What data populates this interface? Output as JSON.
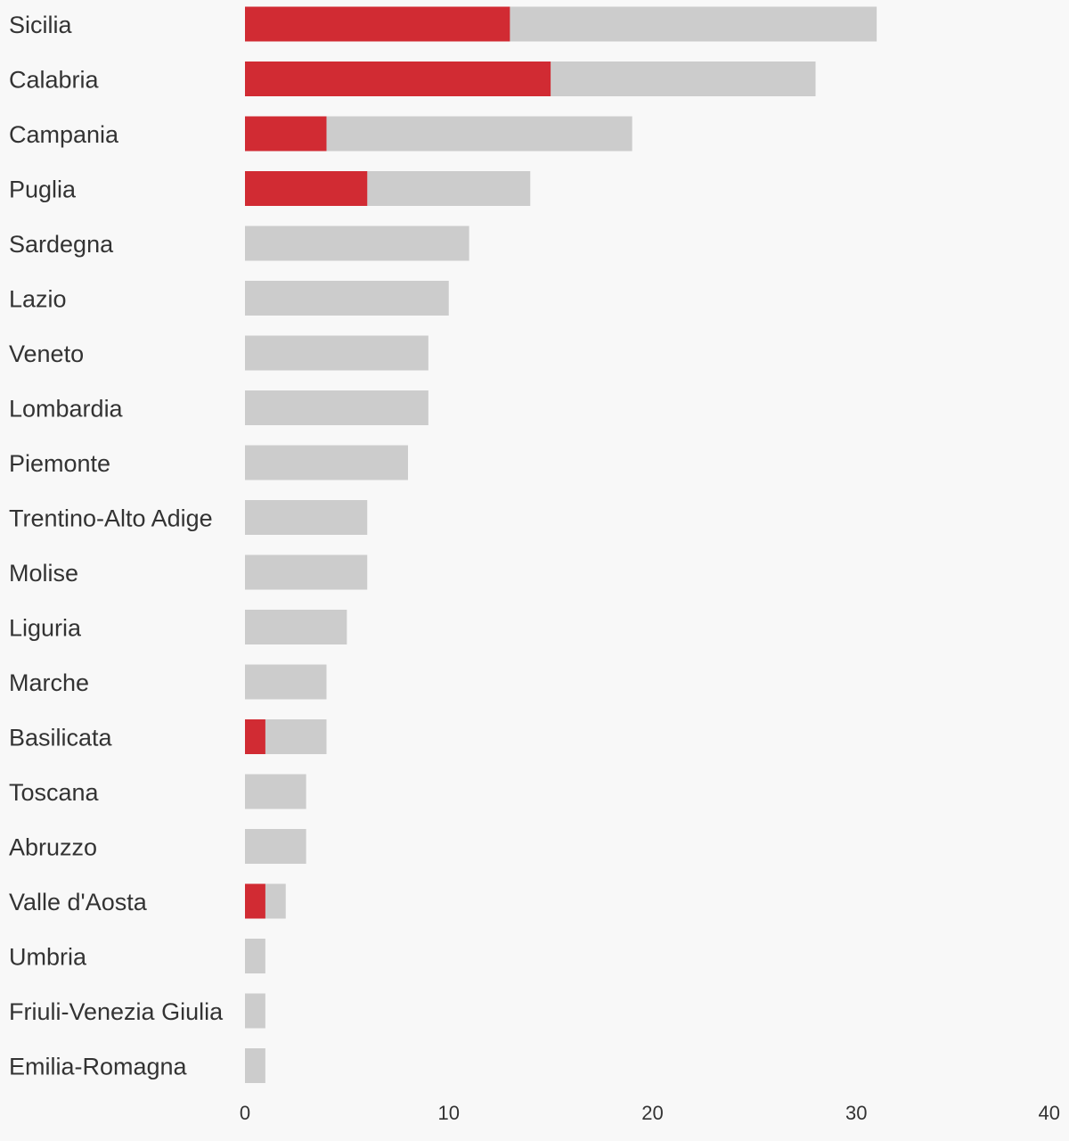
{
  "chart_data": {
    "type": "bar",
    "orientation": "horizontal",
    "stacked": false,
    "overlap": true,
    "categories": [
      "Sicilia",
      "Calabria",
      "Campania",
      "Puglia",
      "Sardegna",
      "Lazio",
      "Veneto",
      "Lombardia",
      "Piemonte",
      "Trentino-Alto Adige",
      "Molise",
      "Liguria",
      "Marche",
      "Basilicata",
      "Toscana",
      "Abruzzo",
      "Valle d'Aosta",
      "Umbria",
      "Friuli-Venezia Giulia",
      "Emilia-Romagna"
    ],
    "series": [
      {
        "color": "#cccccc",
        "values": [
          31,
          28,
          19,
          14,
          11,
          10,
          9,
          9,
          8,
          6,
          6,
          5,
          4,
          4,
          3,
          3,
          2,
          1,
          1,
          1
        ]
      },
      {
        "color": "#d12b33",
        "values": [
          13,
          15,
          4,
          6,
          0,
          0,
          0,
          0,
          0,
          0,
          0,
          0,
          0,
          1,
          0,
          0,
          1,
          0,
          0,
          0
        ]
      }
    ],
    "xlim": [
      0,
      40
    ],
    "xticks": [
      "0",
      "10",
      "20",
      "30",
      "40"
    ],
    "title": "",
    "xlabel": "",
    "ylabel": "",
    "grid": false,
    "legend": "none"
  }
}
